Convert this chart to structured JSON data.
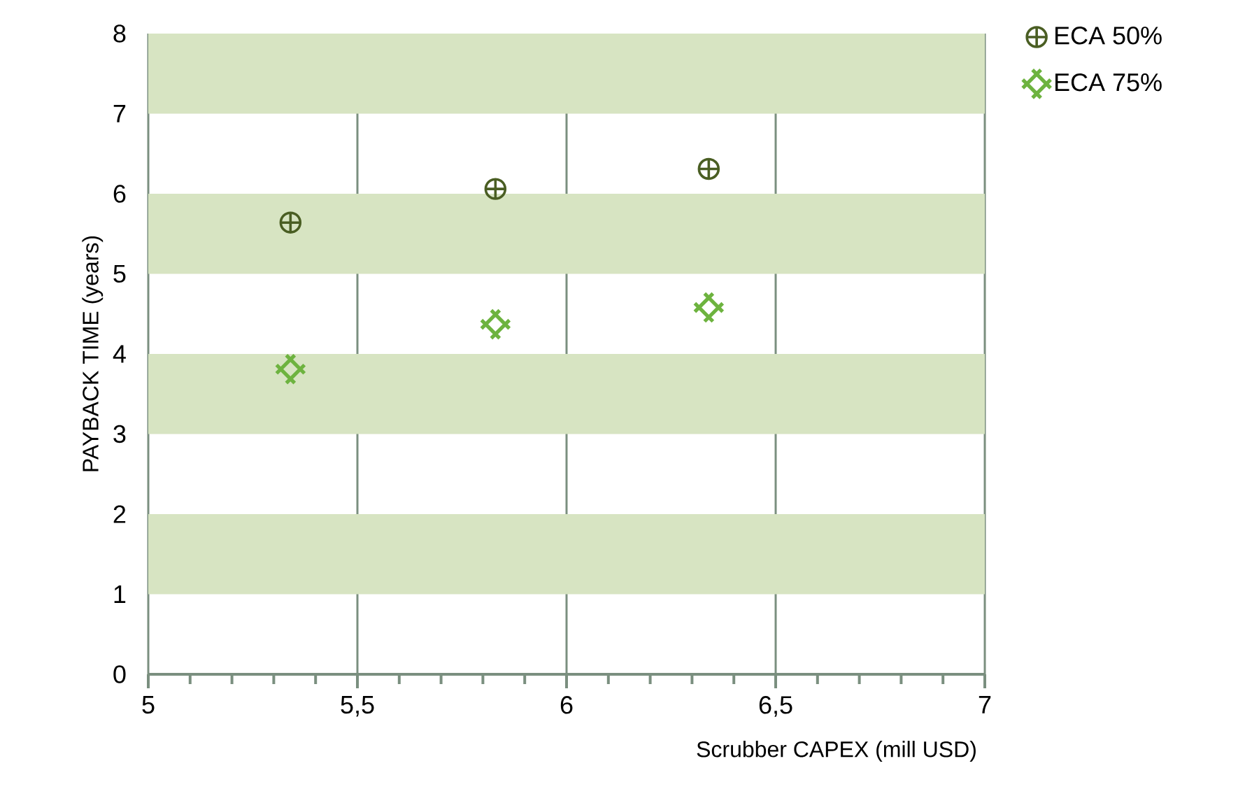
{
  "chart_data": {
    "type": "scatter",
    "xlabel": "Scrubber CAPEX (mill USD)",
    "ylabel": "PAYBACK TIME (years)",
    "xlim": [
      5,
      7
    ],
    "ylim": [
      0,
      8
    ],
    "xticks": [
      5,
      {
        "value": 5.5,
        "label": "5,5"
      },
      6,
      {
        "value": 6.5,
        "label": "6,5"
      },
      7
    ],
    "yticks": [
      0,
      1,
      2,
      3,
      4,
      5,
      6,
      7,
      8
    ],
    "grid": "x",
    "legend": "top right",
    "bands": [
      {
        "axis": "y",
        "from": 1,
        "to": 2,
        "color": "#d7e4c2"
      },
      {
        "axis": "y",
        "from": 3,
        "to": 4,
        "color": "#d7e4c2"
      },
      {
        "axis": "y",
        "from": 5,
        "to": 6,
        "color": "#d7e4c2"
      },
      {
        "axis": "y",
        "from": 7,
        "to": 8,
        "color": "#d7e4c2"
      }
    ],
    "series": [
      {
        "name": "ECA 50%",
        "color": "#4a5e23",
        "marker": "cross",
        "x": [
          5.34,
          5.83,
          6.34
        ],
        "values": [
          5.64,
          6.06,
          6.31
        ]
      },
      {
        "name": "ECA 75%",
        "color": "#6db33f",
        "marker": "cross",
        "x": [
          5.34,
          5.83,
          6.34
        ],
        "values": [
          3.81,
          4.37,
          4.58
        ]
      }
    ]
  }
}
